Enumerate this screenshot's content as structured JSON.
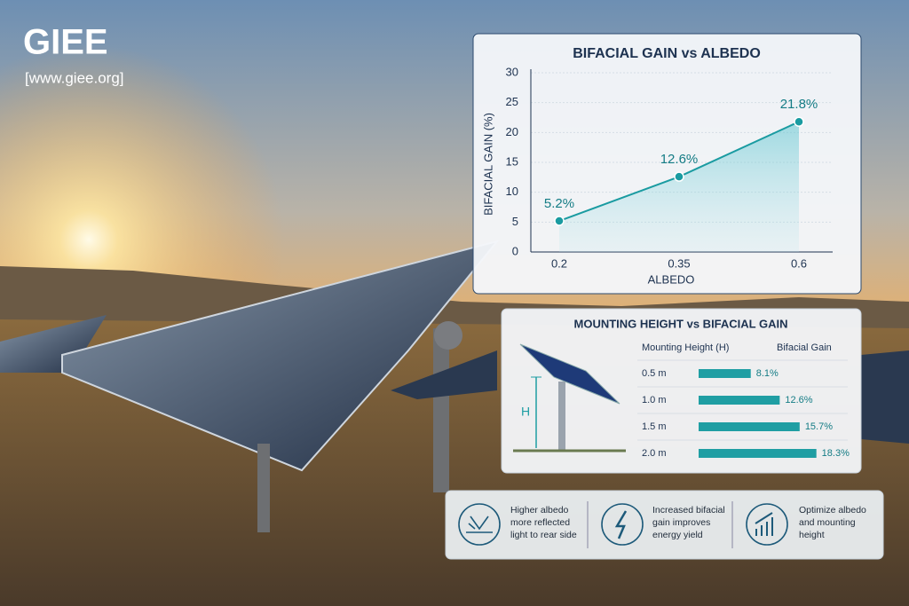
{
  "brand": {
    "name": "GIEE",
    "url": "[www.giee.org]"
  },
  "chart_data": [
    {
      "type": "line",
      "title": "BIFACIAL GAIN vs ALBEDO",
      "x_label": "ALBEDO",
      "y_label": "BIFACIAL GAIN (%)",
      "categories": [
        "0.2",
        "0.35",
        "0.6"
      ],
      "values": [
        5.2,
        12.6,
        21.8
      ],
      "value_labels": [
        "5.2%",
        "12.6%",
        "21.8%"
      ],
      "ylim": [
        0,
        30
      ],
      "yticks": [
        0,
        5,
        10,
        15,
        20,
        25,
        30
      ],
      "grid": true,
      "color": "#1a9ba1"
    },
    {
      "type": "hbar",
      "title": "MOUNTING HEIGHT vs BIFACIAL GAIN",
      "columns": [
        "Mounting Height (H)",
        "Bifacial Gain"
      ],
      "annotation": "H",
      "categories": [
        "0.5 m",
        "1.0 m",
        "1.5 m",
        "2.0 m"
      ],
      "values": [
        8.1,
        12.6,
        15.7,
        18.3
      ],
      "value_labels": [
        "8.1%",
        "12.6%",
        "15.7%",
        "18.3%"
      ],
      "xlim": [
        0,
        20
      ],
      "color": "#1f9ea3"
    }
  ],
  "features": [
    "Higher albedo more reflected light to rear side",
    "Increased bifacial gain improves energy yield",
    "Optimize albedo and mounting height"
  ]
}
